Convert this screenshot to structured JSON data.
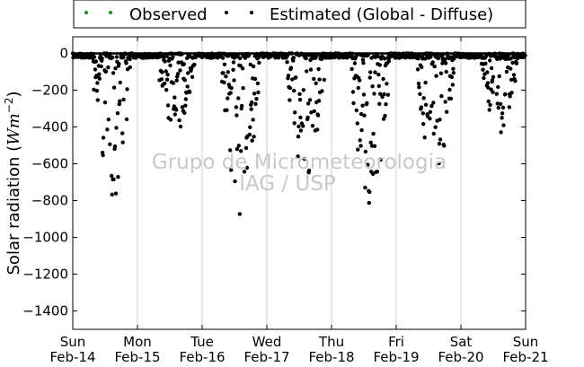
{
  "chart_data": {
    "type": "scatter",
    "ylabel": "Solar radiation ($Wm^{-2}$)",
    "ylabel_text": "Solar radiation (",
    "ylabel_unit_base": "Wm",
    "ylabel_unit_exp": "−2",
    "ylabel_close": ")",
    "ylim": [
      -1500,
      90
    ],
    "yticks": [
      0,
      -200,
      -400,
      -600,
      -800,
      -1000,
      -1200,
      -1400
    ],
    "ytick_labels": [
      "0",
      "−200",
      "−400",
      "−600",
      "−800",
      "−1000",
      "−1200",
      "−1400"
    ],
    "xlim": [
      0,
      7
    ],
    "xticks": [
      {
        "day": "Sun",
        "date": "Feb-14"
      },
      {
        "day": "Mon",
        "date": "Feb-15"
      },
      {
        "day": "Tue",
        "date": "Feb-16"
      },
      {
        "day": "Wed",
        "date": "Feb-17"
      },
      {
        "day": "Thu",
        "date": "Feb-18"
      },
      {
        "day": "Fri",
        "date": "Feb-19"
      },
      {
        "day": "Sat",
        "date": "Feb-20"
      },
      {
        "day": "Sun",
        "date": "Feb-21"
      }
    ],
    "grid": "vertical",
    "legend_position": "top",
    "watermark": [
      "Grupo de Micrometeorologia",
      "IAG / USP"
    ],
    "series": [
      {
        "name": "Observed",
        "color": "#1a8a1a",
        "values": [
          0,
          0,
          0,
          0,
          0,
          0,
          0,
          0
        ]
      },
      {
        "name": "Estimated (Global - Diffuse)",
        "color": "#000000",
        "daily_min": [
          -820,
          -480,
          -880,
          -700,
          -900,
          -660,
          -440
        ]
      }
    ]
  }
}
